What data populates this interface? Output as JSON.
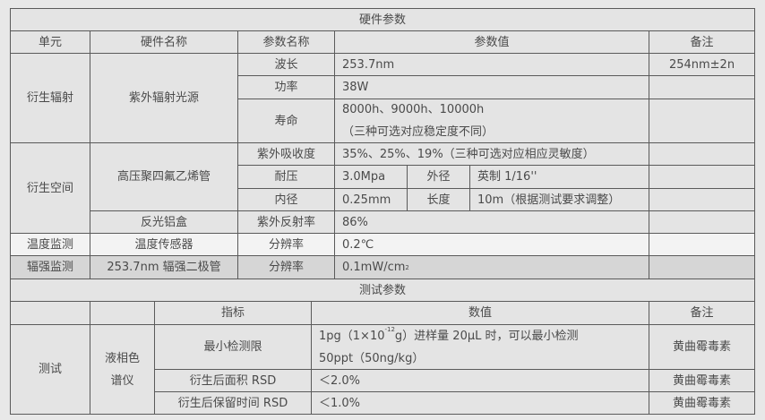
{
  "hardware": {
    "title": "硬件参数",
    "headers": [
      "单元",
      "硬件名称",
      "参数名称",
      "参数值",
      "备注"
    ],
    "radiation": {
      "unit": "衍生辐射",
      "hardware": "紫外辐射光源",
      "rows": [
        {
          "param": "波长",
          "value": "253.7nm",
          "note": "254nm±2n"
        },
        {
          "param": "功率",
          "value": "38W",
          "note": ""
        },
        {
          "param": "寿命",
          "value_line1": "8000h、9000h、10000h",
          "value_line2": "（三种可选对应稳定度不同）",
          "note": ""
        }
      ]
    },
    "space": {
      "unit": "衍生空间",
      "hardware": "高压聚四氟乙烯管",
      "absorbance": {
        "param": "紫外吸收度",
        "value": "35%、25%、19%（三种可选对应相应灵敏度）"
      },
      "pressure": {
        "param": "耐压",
        "value": "3.0Mpa",
        "sub_param": "外径",
        "sub_value": "英制 1/16''"
      },
      "inner": {
        "param": "内径",
        "value": "0.25mm",
        "sub_param": "长度",
        "sub_value": "10m（根据测试要求调整）"
      },
      "box": {
        "hardware": "反光铝盒",
        "param": "紫外反射率",
        "value": "86%"
      }
    },
    "temperature": {
      "unit": "温度监测",
      "hardware": "温度传感器",
      "param": "分辨率",
      "value": "0.2℃"
    },
    "irradiance": {
      "unit": "辐强监测",
      "hardware": "253.7nm 辐强二极管",
      "param": "分辨率",
      "value": "0.1mW/cm",
      "value_sup": "2"
    }
  },
  "test": {
    "title": "测试参数",
    "headers": [
      "",
      "",
      "指标",
      "数值",
      "备注"
    ],
    "unit": "测试",
    "instrument": "液相色谱仪",
    "rows": [
      {
        "metric": "最小检测限",
        "value_a": "1pg（1×10",
        "value_sup": "-12",
        "value_b": "g）进样量 20μL 时，可以最小检测",
        "value_line2": "50ppt（50ng/kg）",
        "note": "黄曲霉毒素"
      },
      {
        "metric": "衍生后面积 RSD",
        "value": "＜2.0%",
        "note": "黄曲霉毒素"
      },
      {
        "metric": "衍生后保留时间 RSD",
        "value": "＜1.0%",
        "note": "黄曲霉毒素"
      }
    ]
  }
}
